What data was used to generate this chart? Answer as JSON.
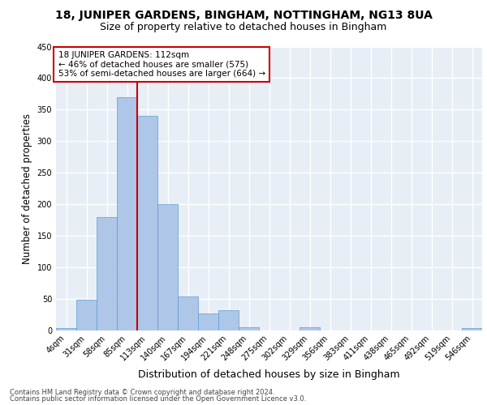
{
  "title1": "18, JUNIPER GARDENS, BINGHAM, NOTTINGHAM, NG13 8UA",
  "title2": "Size of property relative to detached houses in Bingham",
  "xlabel": "Distribution of detached houses by size in Bingham",
  "ylabel": "Number of detached properties",
  "footnote1": "Contains HM Land Registry data © Crown copyright and database right 2024.",
  "footnote2": "Contains public sector information licensed under the Open Government Licence v3.0.",
  "bar_labels": [
    "4sqm",
    "31sqm",
    "58sqm",
    "85sqm",
    "113sqm",
    "140sqm",
    "167sqm",
    "194sqm",
    "221sqm",
    "248sqm",
    "275sqm",
    "302sqm",
    "329sqm",
    "356sqm",
    "383sqm",
    "411sqm",
    "438sqm",
    "465sqm",
    "492sqm",
    "519sqm",
    "546sqm"
  ],
  "bar_values": [
    3,
    48,
    180,
    370,
    340,
    200,
    54,
    27,
    32,
    5,
    0,
    0,
    4,
    0,
    0,
    0,
    0,
    0,
    0,
    0,
    3
  ],
  "bar_color": "#aec6e8",
  "bar_edgecolor": "#5a9fd4",
  "vline_bin_index": 4,
  "vline_color": "#cc0000",
  "annotation_text": "18 JUNIPER GARDENS: 112sqm\n← 46% of detached houses are smaller (575)\n53% of semi-detached houses are larger (664) →",
  "annotation_box_color": "#cc0000",
  "ylim": [
    0,
    450
  ],
  "yticks": [
    0,
    50,
    100,
    150,
    200,
    250,
    300,
    350,
    400,
    450
  ],
  "background_color": "#e8eef6",
  "grid_color": "#ffffff",
  "title1_fontsize": 10,
  "title2_fontsize": 9,
  "xlabel_fontsize": 9,
  "ylabel_fontsize": 8.5,
  "tick_fontsize": 7,
  "annotation_fontsize": 7.5,
  "footnote_fontsize": 6
}
